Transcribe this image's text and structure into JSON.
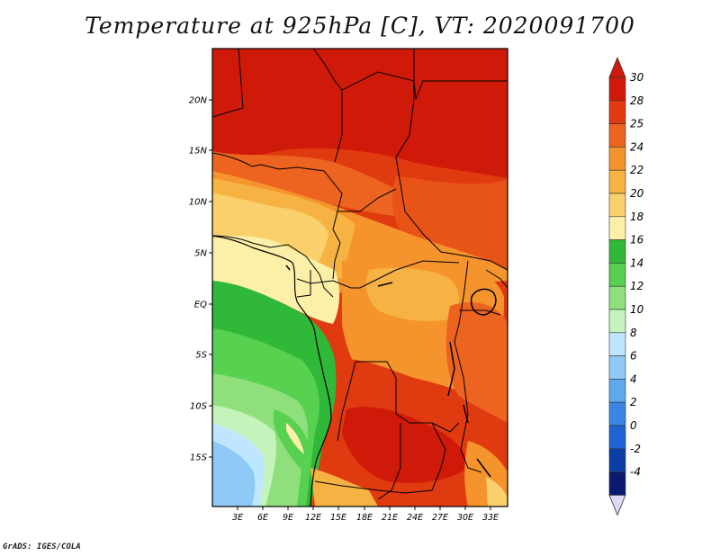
{
  "title": "Temperature at 925hPa [C], VT: 2020091700",
  "credit": "GrADS: IGES/COLA",
  "map": {
    "lat_labels": [
      "20N",
      "15N",
      "10N",
      "5N",
      "EQ",
      "5S",
      "10S",
      "15S"
    ],
    "lon_labels": [
      "3E",
      "6E",
      "9E",
      "12E",
      "15E",
      "18E",
      "21E",
      "24E",
      "27E",
      "30E",
      "33E"
    ]
  },
  "colorbar": {
    "labels": [
      "30",
      "28",
      "25",
      "24",
      "22",
      "20",
      "18",
      "16",
      "14",
      "12",
      "10",
      "8",
      "6",
      "4",
      "2",
      "0",
      "-2",
      "-4"
    ],
    "colors": [
      "#cf1a0a",
      "#e03a10",
      "#ec6420",
      "#f5942c",
      "#f7b244",
      "#f9d06c",
      "#fcf0a8",
      "#30b838",
      "#58d050",
      "#8fe07c",
      "#c4f4bc",
      "#bfe6ff",
      "#8fcaf6",
      "#5ea8ee",
      "#3a86e4",
      "#1f64d2",
      "#0c3ea8",
      "#0a1a70"
    ],
    "top_color": "#cf1a0a",
    "bottom_color": "#ddd8f4"
  }
}
